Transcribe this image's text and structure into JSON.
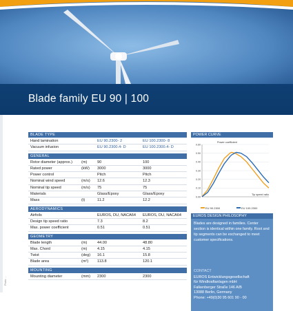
{
  "title": "Blade family EU 90  |  100",
  "side_credit": "Photo: ...",
  "colors": {
    "band": "#0d3a6b",
    "section": "#3f6fa6",
    "value_blue": "#2f5f9a",
    "curve_orange": "#f0a020",
    "curve_blue": "#2a6bb5"
  },
  "spec": {
    "blade_type": {
      "header": "BLADE TYPE",
      "rows": [
        {
          "label": "Hand lamination",
          "unit": "",
          "v1": "EU 90.2300- 2",
          "v2": "EU 100.2300- 8"
        },
        {
          "label": "Vacuum infusion",
          "unit": "",
          "v1": "EU 90.2300.4- D",
          "v2": "EU 100.2300.4- D"
        }
      ]
    },
    "general": {
      "header": "GENERAL",
      "rows": [
        {
          "label": "Rotor diameter (approx.)",
          "unit": "(m)",
          "v1": "90",
          "v2": "100"
        },
        {
          "label": "Rated power",
          "unit": "(kW)",
          "v1": "3000",
          "v2": "3000"
        },
        {
          "label": "Power control",
          "unit": "",
          "v1": "Pitch",
          "v2": "Pitch"
        },
        {
          "label": "Nominal wind speed",
          "unit": "(m/s)",
          "v1": "12.6",
          "v2": "12.3"
        },
        {
          "label": "Nominal tip speed",
          "unit": "(m/s)",
          "v1": "75",
          "v2": "75"
        },
        {
          "label": "Materials",
          "unit": "",
          "v1": "Glass/Epoxy",
          "v2": "Glass/Epoxy"
        },
        {
          "label": "Mass",
          "unit": "(t)",
          "v1": "11.2",
          "v2": "12.2"
        }
      ]
    },
    "aerodynamics": {
      "header": "AERODYNAMICS",
      "rows": [
        {
          "label": "Airfoils",
          "unit": "",
          "v1": "EUROS, DU, NACA64",
          "v2": "EUROS, DU, NACA64"
        },
        {
          "label": "Design tip speed ratio",
          "unit": "",
          "v1": "7.3",
          "v2": "8.2"
        },
        {
          "label": "Max. power coefficient",
          "unit": "",
          "v1": "0.51",
          "v2": "0.51"
        }
      ]
    },
    "geometry": {
      "header": "GEOMETRY",
      "rows": [
        {
          "label": "Blade length",
          "unit": "(m)",
          "v1": "44.00",
          "v2": "48.80"
        },
        {
          "label": "Max. Chord",
          "unit": "(m)",
          "v1": "4.15",
          "v2": "4.15"
        },
        {
          "label": "Twist",
          "unit": "(deg)",
          "v1": "16.1",
          "v2": "15.8"
        },
        {
          "label": "Blade area",
          "unit": "(m²)",
          "v1": "113.8",
          "v2": "120.1"
        }
      ]
    },
    "mounting": {
      "header": "MOUNTING",
      "rows": [
        {
          "label": "Mounting diameter",
          "unit": "(mm)",
          "v1": "2300",
          "v2": "2300"
        }
      ]
    }
  },
  "power_curve": {
    "header": "POWER CURVE",
    "ylabel": "Power coefficient",
    "xlabel": "Tip speed ratio",
    "legend": [
      "EU 90.2300",
      "EU 100.2300"
    ]
  },
  "chart_data": {
    "type": "line",
    "title": "POWER CURVE",
    "xlabel": "Tip speed ratio",
    "ylabel": "Power coefficient",
    "x": [
      2,
      3,
      4,
      5,
      6,
      7,
      7.3,
      8,
      8.2,
      9,
      10,
      11,
      12,
      13,
      14
    ],
    "series": [
      {
        "name": "EU 90.2300",
        "values": [
          0.0,
          0.08,
          0.2,
          0.33,
          0.44,
          0.5,
          0.51,
          0.5,
          0.49,
          0.46,
          0.4,
          0.32,
          0.24,
          0.16,
          0.1
        ]
      },
      {
        "name": "EU 100.2300",
        "values": [
          0.0,
          0.05,
          0.15,
          0.27,
          0.38,
          0.46,
          0.48,
          0.505,
          0.51,
          0.5,
          0.46,
          0.39,
          0.31,
          0.23,
          0.16
        ]
      }
    ],
    "yticks": [
      "0.60",
      "0.50",
      "0.40",
      "0.30",
      "0.20",
      "0.10",
      "0.00"
    ],
    "ylim": [
      0,
      0.6
    ],
    "legend_position": "bottom"
  },
  "philosophy": {
    "header": "EUROS DESIGN PHILOSOPHY",
    "text": "Blades are designed in families. Center section is identical within one family. Root and tip segments can be exchanged to meet customer specifications."
  },
  "contact": {
    "header": "CONTACT",
    "lines": [
      "EUROS Entwicklungsgesellschaft",
      "für Windkraftanlagen mbH",
      "Falkenberger Straße 146 A/B",
      "13088 Berlin, Germany",
      "Phone: +49(0)30 95 601 90 - 00"
    ]
  }
}
